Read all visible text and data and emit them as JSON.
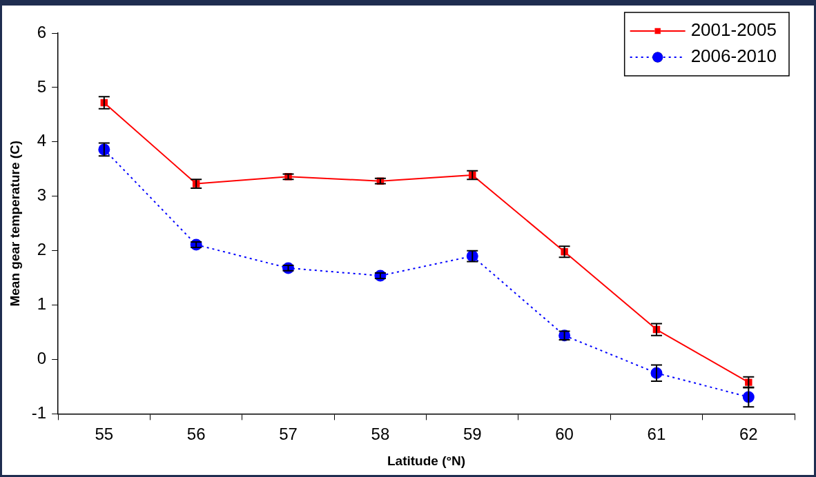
{
  "chart_data": {
    "type": "line",
    "xlabel": "Latitude (°N)",
    "ylabel": "Mean gear temperature (C)",
    "categories": [
      "55",
      "56",
      "57",
      "58",
      "59",
      "60",
      "61",
      "62"
    ],
    "ylim": [
      -1,
      6
    ],
    "yticks": [
      -1,
      0,
      1,
      2,
      3,
      4,
      5,
      6
    ],
    "grid": false,
    "legend": "top right",
    "series": [
      {
        "name": "2001-2005",
        "color": "#ff0000",
        "marker": "square",
        "line_style": "solid",
        "values": [
          4.72,
          3.23,
          3.36,
          3.28,
          3.39,
          1.98,
          0.55,
          -0.42
        ],
        "errors": [
          0.11,
          0.08,
          0.05,
          0.05,
          0.08,
          0.1,
          0.11,
          0.1
        ]
      },
      {
        "name": "2006-2010",
        "color": "#0000ff",
        "marker": "circle",
        "line_style": "dotted",
        "values": [
          3.86,
          2.11,
          1.68,
          1.54,
          1.9,
          0.44,
          -0.25,
          -0.69
        ],
        "errors": [
          0.12,
          0.05,
          0.05,
          0.05,
          0.1,
          0.08,
          0.15,
          0.18
        ]
      }
    ]
  }
}
